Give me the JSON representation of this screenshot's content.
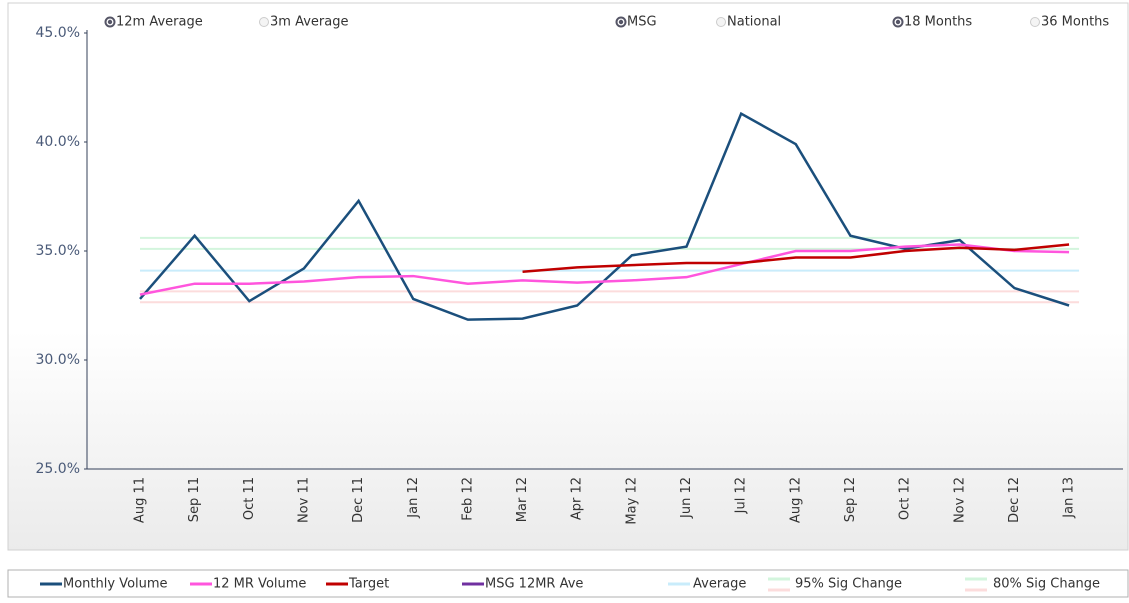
{
  "controls": [
    {
      "options": [
        "12m Average",
        "3m Average"
      ],
      "selected": 0
    },
    {
      "options": [
        "MSG",
        "National"
      ],
      "selected": 0
    },
    {
      "options": [
        "18 Months",
        "36 Months"
      ],
      "selected": 0
    }
  ],
  "chart_data": {
    "type": "line",
    "categories": [
      "Aug 11",
      "Sep 11",
      "Oct 11",
      "Nov 11",
      "Dec 11",
      "Jan 12",
      "Feb 12",
      "Mar 12",
      "Apr 12",
      "May 12",
      "Jun 12",
      "Jul 12",
      "Aug 12",
      "Sep 12",
      "Oct 12",
      "Nov 12",
      "Dec 12",
      "Jan 13"
    ],
    "ylim": [
      25,
      45
    ],
    "yticks": [
      {
        "value": 25,
        "label": "25.0%"
      },
      {
        "value": 30,
        "label": "30.0%"
      },
      {
        "value": 35,
        "label": "35.0%"
      },
      {
        "value": 40,
        "label": "40.0%"
      },
      {
        "value": 45,
        "label": "45.0%"
      }
    ],
    "series": [
      {
        "name": "Monthly Volume",
        "color": "#1b4f7c",
        "values": [
          32.8,
          35.7,
          32.7,
          34.2,
          37.3,
          32.8,
          31.85,
          31.9,
          32.5,
          34.8,
          35.2,
          41.3,
          39.9,
          35.7,
          35.1,
          35.5,
          33.3,
          32.5
        ]
      },
      {
        "name": "12 MR Volume",
        "color": "#ff55dd",
        "values": [
          33.0,
          33.5,
          33.5,
          33.6,
          33.8,
          33.85,
          33.5,
          33.65,
          33.55,
          33.65,
          33.8,
          34.4,
          35.0,
          35.0,
          35.2,
          35.3,
          35.0,
          34.95
        ]
      },
      {
        "name": "Target",
        "color": "#c00000",
        "values": [
          null,
          null,
          null,
          null,
          null,
          null,
          null,
          34.05,
          34.25,
          34.35,
          34.45,
          34.45,
          34.7,
          34.7,
          35.0,
          35.15,
          35.05,
          35.3
        ]
      },
      {
        "name": "MSG 12MR Ave",
        "color": "#7030a0",
        "values": [
          null,
          null,
          null,
          null,
          null,
          null,
          null,
          null,
          null,
          null,
          null,
          null,
          null,
          null,
          null,
          null,
          null,
          null
        ]
      }
    ],
    "reference_lines": [
      {
        "name": "Average",
        "color": "#c9ecfb",
        "value": 34.1
      },
      {
        "name": "95% Sig Change",
        "color_upper": "#d3f5dd",
        "color_lower": "#fcdcdc",
        "upper": 35.6,
        "lower": 32.65
      },
      {
        "name": "80% Sig Change",
        "color_upper": "#d3f5dd",
        "color_lower": "#fcdcdc",
        "upper": 35.1,
        "lower": 33.15
      }
    ]
  }
}
